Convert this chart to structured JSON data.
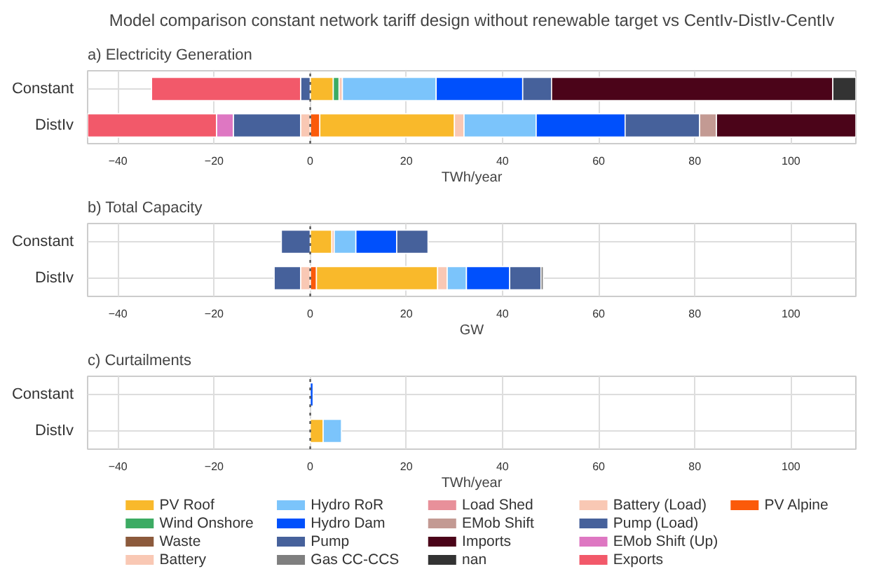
{
  "chart_data": [
    {
      "type": "bar",
      "orientation": "horizontal",
      "stacked": true,
      "title": "Model comparison constant network tariff design without renewable target vs CentIv-DistIv-CentIv",
      "subtitle": "a) Electricity Generation",
      "xlabel": "TWh/year",
      "categories": [
        "Constant",
        "DistIv"
      ],
      "xlim": [
        -46.3,
        113.5
      ],
      "xticks": [
        -40,
        -20,
        0,
        20,
        40,
        60,
        80,
        100
      ],
      "grid": true,
      "ref_lines": [
        {
          "axis": "x",
          "value": 0,
          "color": "#555555",
          "line_style": "dotted"
        }
      ],
      "series": [
        {
          "color": "#fb5a0a",
          "values": [
            null,
            2
          ]
        },
        {
          "color": "#f9b92b",
          "values": [
            4.8,
            28
          ]
        },
        {
          "color": "#3cab63",
          "values": [
            1.2,
            null
          ]
        },
        {
          "color": "#f9c8b4",
          "values": [
            0.7,
            2
          ]
        },
        {
          "color": "#7bc4fb",
          "values": [
            19.5,
            15
          ]
        },
        {
          "color": "#0050fc",
          "values": [
            18,
            18.5
          ]
        },
        {
          "color": "#46619b",
          "values": [
            6,
            15.5
          ]
        },
        {
          "color": "#c39a93",
          "values": [
            null,
            3.5
          ]
        },
        {
          "color": "#4b0419",
          "values": [
            58.5,
            29
          ]
        },
        {
          "color": "#333333",
          "values": [
            4.8,
            null
          ]
        },
        {
          "color": "#f9c8b4",
          "values": [
            null,
            -2
          ]
        },
        {
          "color": "#46619b",
          "values": [
            -2,
            -14
          ]
        },
        {
          "color": "#de77c2",
          "values": [
            null,
            -3.5
          ]
        },
        {
          "color": "#f2596a",
          "values": [
            -31,
            -26.8
          ]
        }
      ]
    },
    {
      "type": "bar",
      "orientation": "horizontal",
      "stacked": true,
      "title": "b) Total Capacity",
      "xlabel": "GW",
      "categories": [
        "Constant",
        "DistIv"
      ],
      "xlim": [
        -46.3,
        113.5
      ],
      "xticks": [
        -40,
        -20,
        0,
        20,
        40,
        60,
        80,
        100
      ],
      "grid": true,
      "ref_lines": [
        {
          "axis": "x",
          "value": 0,
          "color": "#555555",
          "line_style": "dotted"
        }
      ],
      "series": [
        {
          "color": "#fb5a0a",
          "values": [
            null,
            1.3
          ]
        },
        {
          "color": "#f9b92b",
          "values": [
            4.5,
            25.2
          ]
        },
        {
          "color": "#f9c8b4",
          "values": [
            0.5,
            2
          ]
        },
        {
          "color": "#7bc4fb",
          "values": [
            4.5,
            4
          ]
        },
        {
          "color": "#0050fc",
          "values": [
            8.5,
            9
          ]
        },
        {
          "color": "#46619b",
          "values": [
            6.5,
            6.5
          ]
        },
        {
          "color": "#7f7f7f",
          "values": [
            null,
            0.5
          ]
        },
        {
          "color": "#f9c8b4",
          "values": [
            null,
            -2
          ]
        },
        {
          "color": "#46619b",
          "values": [
            -6,
            -5.5
          ]
        }
      ]
    },
    {
      "type": "bar",
      "orientation": "horizontal",
      "stacked": true,
      "title": "c) Curtailments",
      "xlabel": "TWh/year",
      "categories": [
        "Constant",
        "DistIv"
      ],
      "xlim": [
        -46.3,
        113.5
      ],
      "xticks": [
        -40,
        -20,
        0,
        20,
        40,
        60,
        80,
        100
      ],
      "grid": true,
      "legend": "bottom",
      "ref_lines": [
        {
          "axis": "x",
          "value": 0,
          "color": "#555555",
          "line_style": "dotted"
        }
      ],
      "series": [
        {
          "name": "PV Roof",
          "color": "#f9b92b",
          "values": [
            null,
            2.7
          ]
        },
        {
          "name": "Wind Onshore",
          "color": "#3cab63",
          "values": [
            null,
            null
          ]
        },
        {
          "name": "Waste",
          "color": "#8c5a3c",
          "values": [
            null,
            null
          ]
        },
        {
          "name": "Battery",
          "color": "#f9c8b4",
          "values": [
            null,
            null
          ]
        },
        {
          "name": "Hydro RoR",
          "color": "#7bc4fb",
          "values": [
            null,
            3.8
          ]
        },
        {
          "name": "Hydro Dam",
          "color": "#0050fc",
          "values": [
            0.6,
            null
          ]
        },
        {
          "name": "Pump",
          "color": "#46619b",
          "values": [
            null,
            null
          ]
        },
        {
          "name": "Gas CC-CCS",
          "color": "#7f7f7f",
          "values": [
            null,
            null
          ]
        },
        {
          "name": "Load Shed",
          "color": "#e8909a",
          "values": [
            null,
            null
          ]
        },
        {
          "name": "EMob Shift",
          "color": "#c39a93",
          "values": [
            null,
            null
          ]
        },
        {
          "name": "Imports",
          "color": "#4b0419",
          "values": [
            null,
            null
          ]
        },
        {
          "name": "nan",
          "color": "#333333",
          "values": [
            null,
            null
          ]
        },
        {
          "name": "Battery (Load)",
          "color": "#f9c8b4",
          "values": [
            null,
            null
          ]
        },
        {
          "name": "Pump (Load)",
          "color": "#46619b",
          "values": [
            null,
            null
          ]
        },
        {
          "name": "EMob Shift (Up)",
          "color": "#de77c2",
          "values": [
            null,
            null
          ]
        },
        {
          "name": "Exports",
          "color": "#f2596a",
          "values": [
            null,
            null
          ]
        },
        {
          "name": "PV Alpine",
          "color": "#fb5a0a",
          "values": [
            null,
            null
          ]
        }
      ]
    }
  ]
}
